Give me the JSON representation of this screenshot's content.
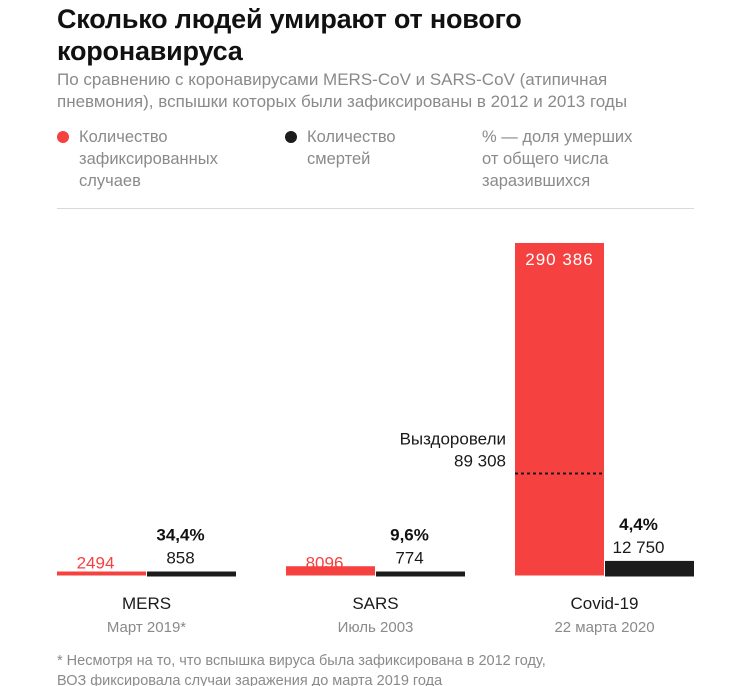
{
  "header": {
    "title": "Сколько людей умирают от нового коронавируса",
    "subtitle": "По сравнению с коронавирусами MERS-CoV и SARS-CoV (атипичная пневмония), вспышки которых были зафиксированы в 2012 и 2013 годы"
  },
  "legend": [
    {
      "label": "Количество\nзафиксированных\nслучаев",
      "color": "#f5413f"
    },
    {
      "label": "Количество\nсмертей",
      "color": "#1c1c1c"
    },
    {
      "label": "% — доля умерших\nот общего числа\nзаразившихся"
    }
  ],
  "chart_data": {
    "type": "bar",
    "title": "Сколько людей умирают от нового коронавируса",
    "xlabel": "",
    "ylabel": "",
    "ylim": [
      0,
      290386
    ],
    "grid": false,
    "categories": [
      "MERS",
      "SARS",
      "Covid-19"
    ],
    "dates": [
      "Март 2019*",
      "Июль 2003",
      "22 марта 2020"
    ],
    "series": [
      {
        "name": "Количество зафиксированных случаев",
        "color": "#f5413f",
        "values": [
          2494,
          8096,
          290386
        ],
        "labels": [
          "2494",
          "8096",
          "290 386"
        ]
      },
      {
        "name": "Количество смертей",
        "color": "#1c1c1c",
        "values": [
          858,
          774,
          12750
        ],
        "labels": [
          "858",
          "774",
          "12 750"
        ]
      }
    ],
    "percent_labels": [
      "34,4%",
      "9,6%",
      "4,4%"
    ],
    "annotation": {
      "category": "Covid-19",
      "label": "Выздоровели",
      "value": 89308,
      "value_label": "89 308"
    }
  },
  "footnote": "* Несмотря на то, что вспышка вируса была зафиксирована в 2012 году,\nВОЗ фиксировала случаи заражения до марта 2019 года"
}
